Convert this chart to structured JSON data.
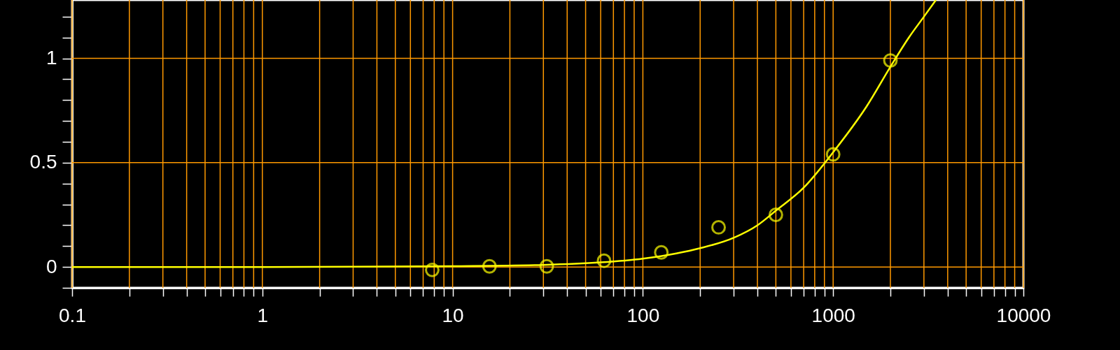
{
  "chart_data": {
    "type": "scatter",
    "log": "x",
    "grid": true,
    "xlim": [
      0.1,
      10000
    ],
    "ylim": [
      -0.1,
      1.28
    ],
    "xticks": [
      0.1,
      {
        "value": 0.2,
        "label": null
      },
      {
        "value": 0.3,
        "label": null
      },
      {
        "value": 0.4,
        "label": null
      },
      {
        "value": 0.5,
        "label": null
      },
      {
        "value": 0.6,
        "label": null
      },
      {
        "value": 0.7,
        "label": null
      },
      {
        "value": 0.8,
        "label": null
      },
      {
        "value": 0.9,
        "label": null
      },
      1,
      {
        "value": 2,
        "label": null
      },
      {
        "value": 3,
        "label": null
      },
      {
        "value": 4,
        "label": null
      },
      {
        "value": 5,
        "label": null
      },
      {
        "value": 6,
        "label": null
      },
      {
        "value": 7,
        "label": null
      },
      {
        "value": 8,
        "label": null
      },
      {
        "value": 9,
        "label": null
      },
      10,
      {
        "value": 20,
        "label": null
      },
      {
        "value": 30,
        "label": null
      },
      {
        "value": 40,
        "label": null
      },
      {
        "value": 50,
        "label": null
      },
      {
        "value": 60,
        "label": null
      },
      {
        "value": 70,
        "label": null
      },
      {
        "value": 80,
        "label": null
      },
      {
        "value": 90,
        "label": null
      },
      100,
      {
        "value": 200,
        "label": null
      },
      {
        "value": 300,
        "label": null
      },
      {
        "value": 400,
        "label": null
      },
      {
        "value": 500,
        "label": null
      },
      {
        "value": 600,
        "label": null
      },
      {
        "value": 700,
        "label": null
      },
      {
        "value": 800,
        "label": null
      },
      {
        "value": 900,
        "label": null
      },
      1000,
      {
        "value": 2000,
        "label": null
      },
      {
        "value": 3000,
        "label": null
      },
      {
        "value": 4000,
        "label": null
      },
      {
        "value": 5000,
        "label": null
      },
      {
        "value": 6000,
        "label": null
      },
      {
        "value": 7000,
        "label": null
      },
      {
        "value": 8000,
        "label": null
      },
      {
        "value": 9000,
        "label": null
      },
      10000
    ],
    "yticks": [
      {
        "value": -0.1,
        "label": null
      },
      0,
      {
        "value": 0.1,
        "label": null
      },
      {
        "value": 0.2,
        "label": null
      },
      {
        "value": 0.3,
        "label": null
      },
      {
        "value": 0.4,
        "label": null
      },
      0.5,
      {
        "value": 0.6,
        "label": null
      },
      {
        "value": 0.7,
        "label": null
      },
      {
        "value": 0.8,
        "label": null
      },
      {
        "value": 0.9,
        "label": null
      },
      1,
      {
        "value": 1.1,
        "label": null
      },
      {
        "value": 1.2,
        "label": null
      }
    ],
    "series": [
      {
        "marker": "circle",
        "color": "#ffff00",
        "x": [
          7.8125,
          15.625,
          31.25,
          62.5,
          125,
          250,
          500,
          1000,
          2000
        ],
        "values": [
          -0.014,
          0.003,
          0.003,
          0.03,
          0.07,
          0.19,
          0.25,
          0.54,
          0.99
        ]
      },
      {
        "type": "line",
        "color": "#ffff00",
        "x": [
          0.1,
          1,
          3,
          10,
          30,
          60,
          100,
          150,
          200,
          300,
          400,
          500,
          700,
          1000,
          1500,
          2000,
          2500,
          3000,
          3470
        ],
        "values": [
          0,
          0,
          0.001,
          0.004,
          0.01,
          0.022,
          0.04,
          0.065,
          0.09,
          0.14,
          0.2,
          0.27,
          0.38,
          0.55,
          0.77,
          0.96,
          1.1,
          1.2,
          1.28
        ]
      }
    ]
  }
}
